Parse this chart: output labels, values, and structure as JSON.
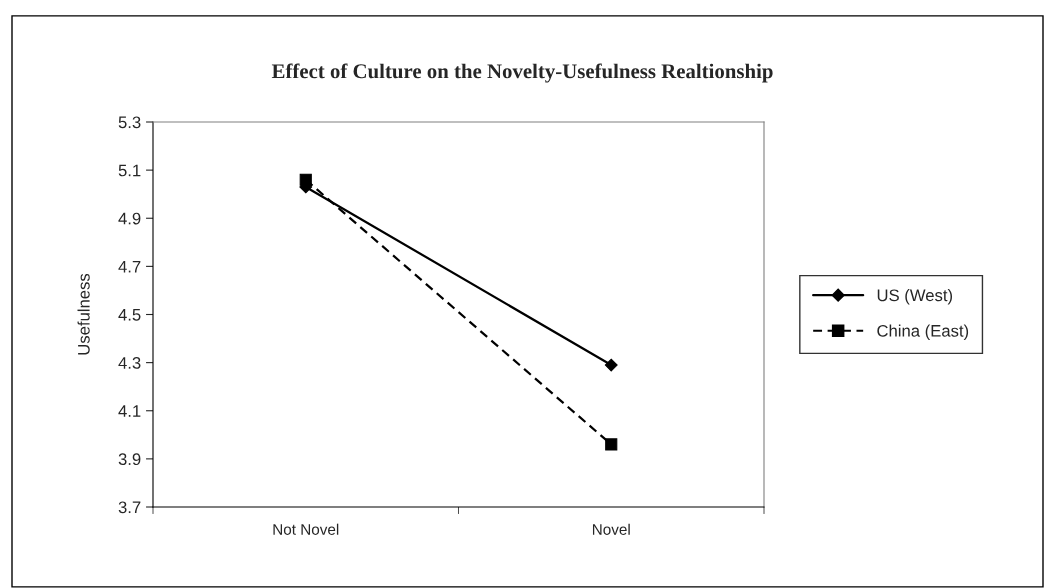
{
  "chart_data": {
    "type": "line",
    "title": "Effect of Culture on the Novelty-Usefulness Realtionship",
    "ylabel": "Usefulness",
    "categories": [
      "Not Novel",
      "Novel"
    ],
    "series": [
      {
        "name": "US (West)",
        "color": "#000000",
        "values": [
          5.03,
          4.29
        ],
        "marker": "diamond",
        "line_style": "solid"
      },
      {
        "name": "China (East)",
        "color": "#000000",
        "values": [
          5.06,
          3.96
        ],
        "marker": "square",
        "line_style": "dashed"
      }
    ],
    "ylim": [
      3.7,
      5.3
    ],
    "yticks": [
      3.7,
      3.9,
      4.1,
      4.3,
      4.5,
      4.7,
      4.9,
      5.1,
      5.3
    ],
    "grid": false,
    "legend": "right"
  }
}
